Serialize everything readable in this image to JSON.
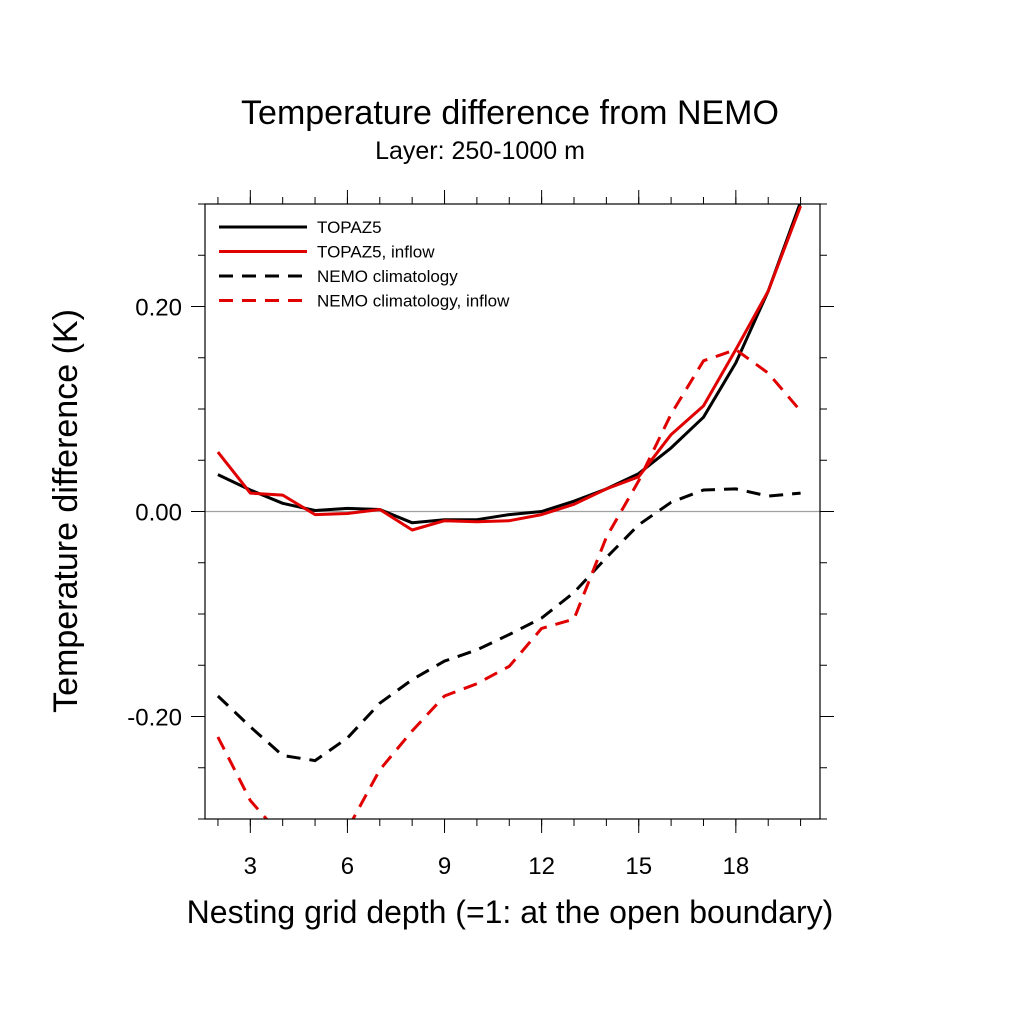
{
  "chart_data": {
    "type": "line",
    "title": "Temperature difference from NEMO",
    "subtitle": "Layer: 250-1000 m",
    "xlabel": "Nesting grid depth (=1: at the open boundary)",
    "ylabel": "Temperature difference (K)",
    "xlim": [
      1.6,
      20.6
    ],
    "ylim": [
      -0.3,
      0.3
    ],
    "x_ticks": [
      3,
      6,
      9,
      12,
      15,
      18
    ],
    "x_tick_labels": [
      "3",
      "6",
      "9",
      "12",
      "15",
      "18"
    ],
    "y_ticks": [
      -0.2,
      0.0,
      0.2
    ],
    "y_tick_labels": [
      "-0.20",
      "0.00",
      "0.20"
    ],
    "x_minor_step": 1,
    "y_minor_step": 0.05,
    "zero_line": true,
    "legend_position": "top-left",
    "x": [
      2,
      3,
      4,
      5,
      6,
      7,
      8,
      9,
      10,
      11,
      12,
      13,
      14,
      15,
      16,
      17,
      18,
      19,
      20
    ],
    "series": [
      {
        "name": "TOPAZ5",
        "color": "#000000",
        "dash": "solid",
        "values": [
          0.036,
          0.021,
          0.008,
          0.001,
          0.003,
          0.002,
          -0.011,
          -0.008,
          -0.008,
          -0.003,
          0.0,
          0.01,
          0.022,
          0.037,
          0.062,
          0.092,
          0.145,
          0.215,
          0.302
        ]
      },
      {
        "name": "TOPAZ5, inflow",
        "color": "#e00000",
        "dash": "solid",
        "values": [
          0.058,
          0.018,
          0.016,
          -0.003,
          -0.002,
          0.002,
          -0.018,
          -0.009,
          -0.01,
          -0.009,
          -0.003,
          0.007,
          0.022,
          0.034,
          0.075,
          0.103,
          0.158,
          0.215,
          0.298
        ]
      },
      {
        "name": "NEMO climatology",
        "color": "#000000",
        "dash": "dashed",
        "values": [
          -0.18,
          -0.21,
          -0.238,
          -0.243,
          -0.221,
          -0.187,
          -0.164,
          -0.146,
          -0.135,
          -0.12,
          -0.104,
          -0.079,
          -0.045,
          -0.013,
          0.009,
          0.021,
          0.022,
          0.015,
          0.018
        ]
      },
      {
        "name": "NEMO climatology, inflow",
        "color": "#e00000",
        "dash": "dashed",
        "values": [
          -0.22,
          -0.282,
          -0.318,
          -0.34,
          -0.31,
          -0.252,
          -0.214,
          -0.18,
          -0.168,
          -0.151,
          -0.114,
          -0.105,
          -0.025,
          0.03,
          0.095,
          0.147,
          0.158,
          0.135,
          0.098
        ]
      }
    ]
  }
}
